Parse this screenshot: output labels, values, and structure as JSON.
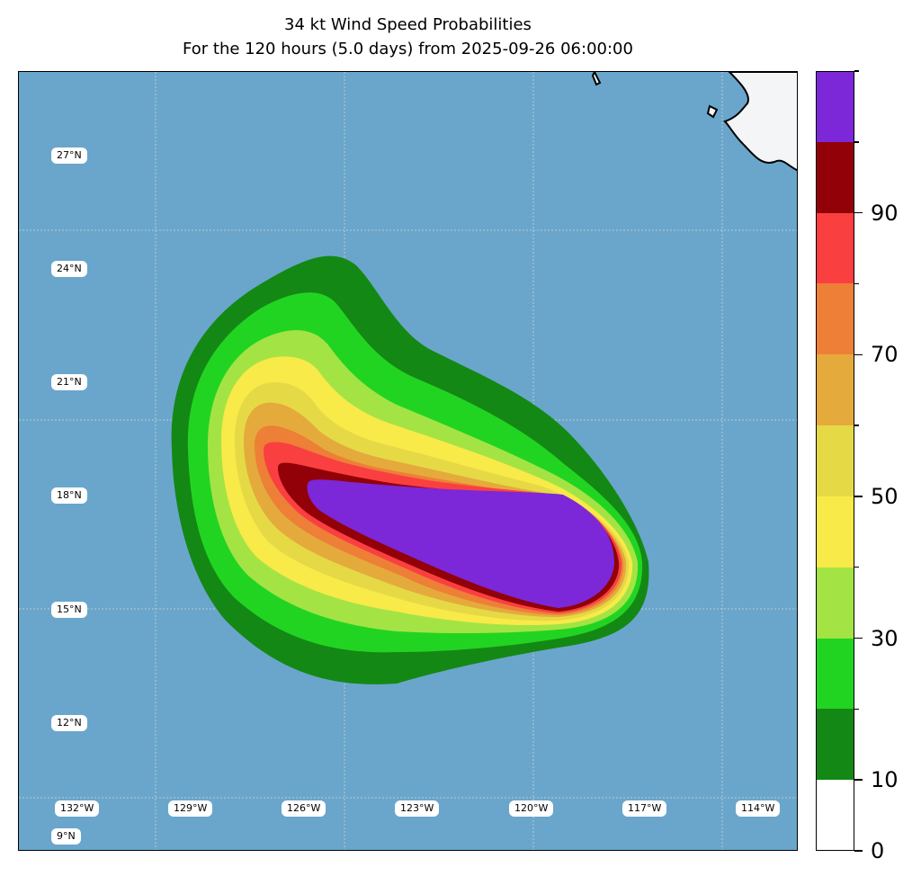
{
  "title": {
    "line1": "34 kt Wind Speed Probabilities",
    "line2": "For the 120 hours (5.0 days) from 2025-09-26 06:00:00"
  },
  "map": {
    "ocean_color": "#6aa6cb",
    "land_color": "#f4f5f7",
    "lat_labels": [
      "27°N",
      "24°N",
      "21°N",
      "18°N",
      "15°N",
      "12°N",
      "9°N"
    ],
    "lon_labels": [
      "132°W",
      "129°W",
      "126°W",
      "123°W",
      "120°W",
      "117°W",
      "114°W"
    ]
  },
  "colorbar": {
    "bins": [
      {
        "range": [
          0,
          10
        ],
        "color": "#ffffff"
      },
      {
        "range": [
          10,
          20
        ],
        "color": "#148814"
      },
      {
        "range": [
          20,
          30
        ],
        "color": "#22d422"
      },
      {
        "range": [
          30,
          40
        ],
        "color": "#a3e444"
      },
      {
        "range": [
          40,
          50
        ],
        "color": "#f8ea48"
      },
      {
        "range": [
          50,
          60
        ],
        "color": "#e6d946"
      },
      {
        "range": [
          60,
          70
        ],
        "color": "#e5aa3c"
      },
      {
        "range": [
          70,
          80
        ],
        "color": "#ed7f37"
      },
      {
        "range": [
          80,
          90
        ],
        "color": "#fa3f41"
      },
      {
        "range": [
          90,
          100
        ],
        "color": "#920108"
      },
      {
        "range": [
          100,
          110
        ],
        "color": "#7c27d8"
      }
    ],
    "tick_values": [
      0,
      10,
      20,
      30,
      40,
      50,
      60,
      70,
      80,
      90,
      100,
      110
    ],
    "label_values": [
      "0",
      "10",
      "30",
      "50",
      "70",
      "90"
    ]
  },
  "chart_data": {
    "type": "heatmap",
    "title": "34 kt Wind Speed Probabilities",
    "subtitle": "For the 120 hours (5.0 days) from 2025-09-26 06:00:00",
    "variable": "probability of 34 kt winds (%)",
    "levels": [
      0,
      10,
      20,
      30,
      40,
      50,
      60,
      70,
      80,
      90,
      100,
      110
    ],
    "x_range": [
      -133,
      -112
    ],
    "y_range": [
      8,
      29
    ],
    "xlabel": "",
    "ylabel": ""
  }
}
